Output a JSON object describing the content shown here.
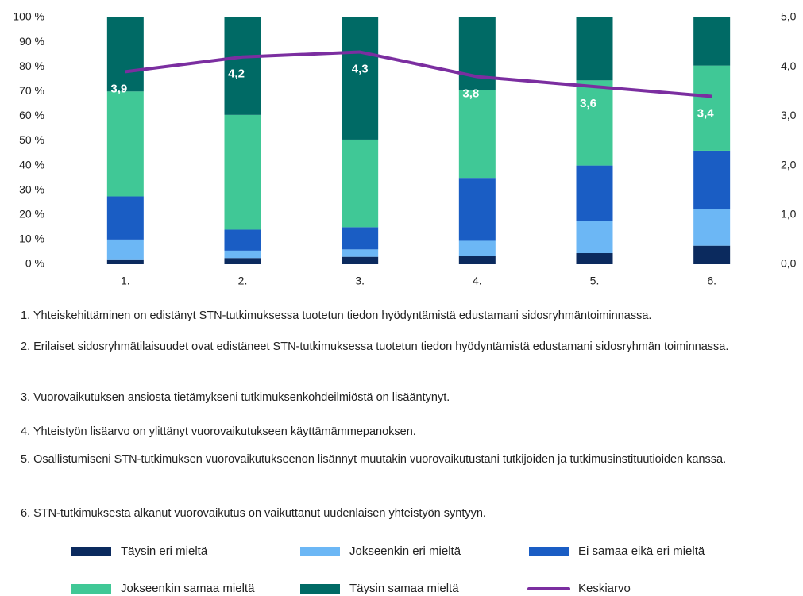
{
  "chart_data": {
    "type": "bar",
    "stacked": true,
    "categories": [
      "1.",
      "2.",
      "3.",
      "4.",
      "5.",
      "6."
    ],
    "series": [
      {
        "name": "Täysin eri mieltä",
        "color": "#0b2a5e",
        "values": [
          2,
          2.5,
          3,
          3.5,
          4.5,
          7.5
        ]
      },
      {
        "name": "Jokseenkin eri mieltä",
        "color": "#6cb7f5",
        "values": [
          8,
          3,
          3,
          6,
          13,
          15
        ]
      },
      {
        "name": "Ei samaa eikä eri mieltä",
        "color": "#1a5dc4",
        "values": [
          17.5,
          8.5,
          9,
          25.5,
          22.5,
          23.5
        ]
      },
      {
        "name": "Jokseenkin samaa mieltä",
        "color": "#40c896",
        "values": [
          42.5,
          46.5,
          35.5,
          35.5,
          34.5,
          34.5
        ]
      },
      {
        "name": "Täysin samaa mieltä",
        "color": "#006a65",
        "values": [
          30,
          39.5,
          49.5,
          29.5,
          25.5,
          19.5
        ]
      },
      {
        "name": "Keskiarvo",
        "color": "#7b2ea0",
        "type": "line",
        "axis": "y2",
        "values": [
          3.9,
          4.2,
          4.3,
          3.8,
          3.6,
          3.4
        ],
        "value_labels": [
          "3,9",
          "4,2",
          "4,3",
          "3,8",
          "3,6",
          "3,4"
        ]
      }
    ],
    "ylim": [
      0,
      100
    ],
    "yticks": [
      {
        "value": 0,
        "label": "0 %"
      },
      {
        "value": 10,
        "label": "10 %"
      },
      {
        "value": 20,
        "label": "20 %"
      },
      {
        "value": 30,
        "label": "30 %"
      },
      {
        "value": 40,
        "label": "40 %"
      },
      {
        "value": 50,
        "label": "50 %"
      },
      {
        "value": 60,
        "label": "60 %"
      },
      {
        "value": 70,
        "label": "70 %"
      },
      {
        "value": 80,
        "label": "80 %"
      },
      {
        "value": 90,
        "label": "90 %"
      },
      {
        "value": 100,
        "label": "100 %"
      }
    ],
    "y2lim": [
      0,
      5
    ],
    "y2ticks": [
      {
        "value": 0,
        "label": "0,0"
      },
      {
        "value": 1,
        "label": "1,0"
      },
      {
        "value": 2,
        "label": "2,0"
      },
      {
        "value": 3,
        "label": "3,0"
      },
      {
        "value": 4,
        "label": "4,0"
      },
      {
        "value": 5,
        "label": "5,0"
      }
    ],
    "notes": [
      "1. Yhteiskehittäminen on edistänyt STN-tutkimuksessa tuotetun tiedon hyödyntämistä edustamani sidosryhmäntoiminnassa.",
      "2. Erilaiset sidosryhmätilaisuudet ovat edistäneet STN-tutkimuksessa tuotetun tiedon hyödyntämistä edustamani sidosryhmän toiminnassa.",
      "3. Vuorovaikutuksen ansiosta tietämykseni tutkimuksenkohdeilmiöstä on lisääntynyt.",
      "4. Yhteistyön lisäarvo on ylittänyt vuorovaikutukseen käyttämämmepanoksen.",
      "5. Osallistumiseni STN-tutkimuksen vuorovaikutukseenon lisännyt muutakin vuorovaikutustani tutkijoiden ja tutkimusinstituutioiden kanssa.",
      "6. STN-tutkimuksesta alkanut vuorovaikutus on vaikuttanut uudenlaisen yhteistyön syntyyn."
    ],
    "legend": "bottom"
  }
}
